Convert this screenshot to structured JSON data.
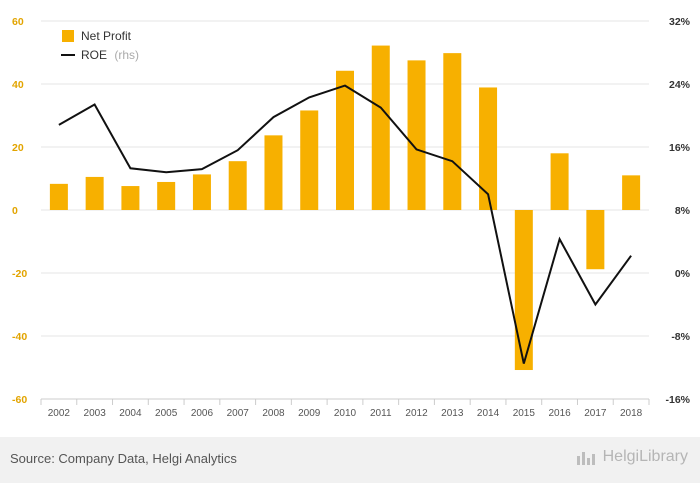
{
  "chart_data": {
    "type": "bar",
    "categories": [
      "2002",
      "2003",
      "2004",
      "2005",
      "2006",
      "2007",
      "2008",
      "2009",
      "2010",
      "2011",
      "2012",
      "2013",
      "2014",
      "2015",
      "2016",
      "2017",
      "2018"
    ],
    "series": [
      {
        "name": "Net Profit",
        "type": "bar",
        "axis": "left",
        "color": "#f7b000",
        "values": [
          8.3,
          10.5,
          7.6,
          8.9,
          11.3,
          15.5,
          23.7,
          31.6,
          44.2,
          52.2,
          47.5,
          49.8,
          38.9,
          -50.8,
          18.0,
          -18.8,
          11.0
        ]
      },
      {
        "name": "ROE",
        "type": "line",
        "axis": "right",
        "color": "#111111",
        "values": [
          18.8,
          21.4,
          13.3,
          12.8,
          13.2,
          15.6,
          19.8,
          22.3,
          23.8,
          21.0,
          15.7,
          14.2,
          10.0,
          -11.5,
          4.3,
          -4.0,
          2.2
        ]
      }
    ],
    "yaxis_left": {
      "ticks": [
        "-60",
        "-40",
        "-20",
        "0",
        "20",
        "40",
        "60"
      ],
      "min": -60,
      "max": 60,
      "color": "#e2a400"
    },
    "yaxis_right": {
      "ticks": [
        "-16%",
        "-8%",
        "0%",
        "8%",
        "16%",
        "24%",
        "32%"
      ],
      "min": -16,
      "max": 32
    },
    "legend": [
      {
        "label": "Net Profit",
        "suffix": ""
      },
      {
        "label": "ROE",
        "suffix": "(rhs)"
      }
    ],
    "legend_position": "top-left",
    "grid": true
  },
  "footer": {
    "source": "Source: Company Data, Helgi Analytics",
    "brand": "HelgiLibrary"
  }
}
